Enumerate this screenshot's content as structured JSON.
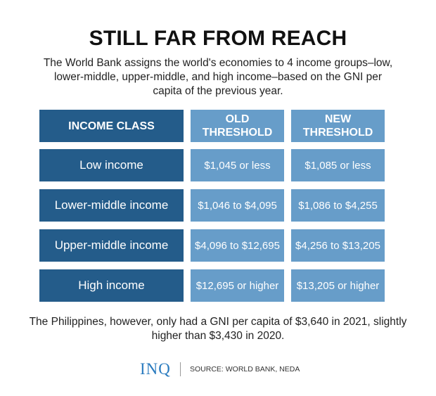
{
  "title": "STILL FAR FROM REACH",
  "subtitle": "The World Bank assigns the world's economies to 4 income groups–low, lower-middle, upper-middle, and high income–based on the GNI per capita of the previous year.",
  "chart_data": {
    "type": "table",
    "columns": [
      "INCOME CLASS",
      "OLD THRESHOLD",
      "NEW THRESHOLD"
    ],
    "rows": [
      [
        "Low income",
        "$1,045 or less",
        "$1,085 or less"
      ],
      [
        "Lower-middle income",
        "$1,046 to $4,095",
        "$1,086 to $4,255"
      ],
      [
        "Upper-middle income",
        "$4,096 to $12,695",
        "$4,256 to $13,205"
      ],
      [
        "High income",
        "$12,695 or higher",
        "$13,205 or higher"
      ]
    ],
    "colors": {
      "income_class": "#245c8a",
      "thresholds": "#679dc9"
    }
  },
  "note": "The Philippines, however, only had a GNI per capita of $3,640 in 2021, slightly higher than $3,430 in 2020.",
  "footer": {
    "logo": "INQ",
    "source": "SOURCE: WORLD BANK, NEDA"
  }
}
